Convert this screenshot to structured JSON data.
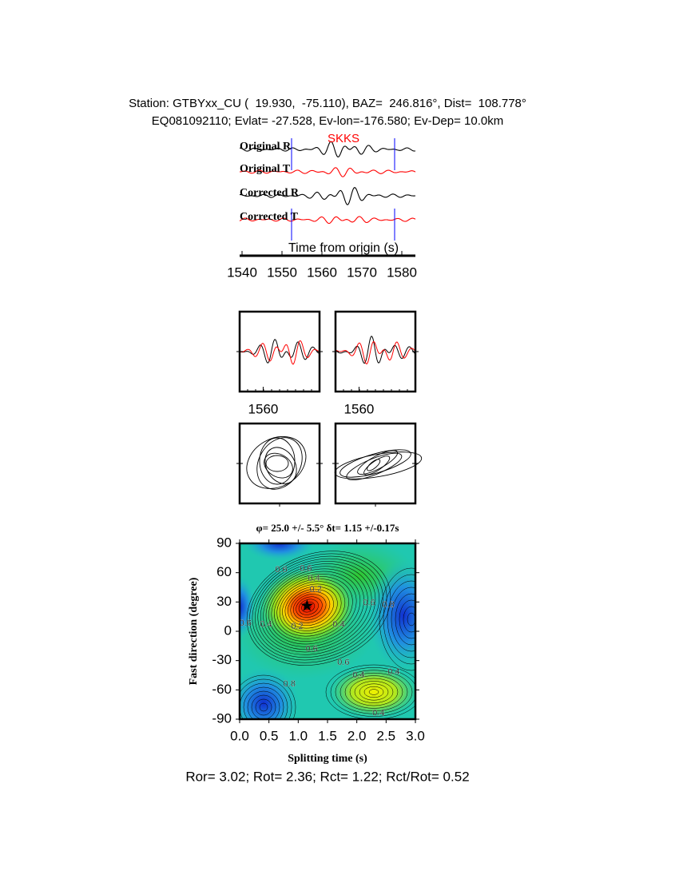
{
  "header": {
    "station": "Station: GTBYxx_CU (  19.930,  -75.110), BAZ=  246.816°, Dist=  108.778°",
    "event": "EQ081092110; Evlat= -27.528, Ev-lon=-176.580; Ev-Dep= 10.0km"
  },
  "chart_data": [
    {
      "type": "seismogram",
      "traces": [
        {
          "name": "Original R",
          "color": "#000000"
        },
        {
          "name": "Original T",
          "color": "#ff0000"
        },
        {
          "name": "Corrected R",
          "color": "#000000"
        },
        {
          "name": "Corrected T",
          "color": "#ff0000"
        }
      ],
      "phase": "SKKS",
      "phase_color": "#ff0000",
      "arrival": 1565.4,
      "window": [
        1552.4,
        1578.2
      ],
      "window_color": "#0000ff",
      "xlabel": "Time from origin (s)",
      "xlim": [
        1539.4,
        1583.4
      ],
      "xticks": [
        1540,
        1550,
        1560,
        1570,
        1580
      ]
    },
    {
      "type": "waveform_window",
      "xlim": [
        1552.4,
        1578.2
      ],
      "xticks": [
        1560
      ],
      "colors": [
        "#000000",
        "#ff0000"
      ]
    },
    {
      "type": "waveform_window",
      "xlim": [
        1552.4,
        1578.2
      ],
      "xticks": [
        1560
      ],
      "colors": [
        "#000000",
        "#ff0000"
      ]
    },
    {
      "type": "contour",
      "title": "φ= 25.0 +/- 5.5° δt= 1.15 +/-0.17s",
      "xlabel": "Splitting time (s)",
      "ylabel": "Fast direction (degree)",
      "xlim": [
        0,
        3
      ],
      "ylim": [
        -90,
        90
      ],
      "xticks": [
        {
          "value": 0,
          "label": "0.0"
        },
        0.5,
        {
          "value": 1,
          "label": "1.0"
        },
        1.5,
        {
          "value": 2,
          "label": "2.0"
        },
        2.5,
        {
          "value": 3,
          "label": "3.0"
        }
      ],
      "yticks": [
        90,
        60,
        30,
        0,
        -30,
        -60,
        -90
      ],
      "best": {
        "x": 1.15,
        "y": 25
      },
      "contour_labels": [
        {
          "value": 0.6,
          "x": 0.71,
          "y": 63
        },
        {
          "value": 0.6,
          "x": 1.13,
          "y": 64
        },
        {
          "value": 0.4,
          "x": 1.27,
          "y": 54
        },
        {
          "value": 0.2,
          "x": 1.3,
          "y": 43
        },
        {
          "value": 0.4,
          "x": 1.69,
          "y": 7
        },
        {
          "value": 0.2,
          "x": 0.98,
          "y": 5
        },
        {
          "value": 0.6,
          "x": 1.23,
          "y": -18
        },
        {
          "value": 0.6,
          "x": 1.77,
          "y": -32
        },
        {
          "value": 0.4,
          "x": 2.03,
          "y": -45
        },
        {
          "value": 0.4,
          "x": 2.63,
          "y": -42
        },
        {
          "value": 0.4,
          "x": 2.37,
          "y": -84
        },
        {
          "value": 0.6,
          "x": 2.21,
          "y": 29
        },
        {
          "value": 0.8,
          "x": 2.54,
          "y": 27
        },
        {
          "value": 0.8,
          "x": 0.85,
          "y": -54
        },
        {
          "value": 0.6,
          "x": 0.1,
          "y": 8
        },
        {
          "value": 0.4,
          "x": 0.45,
          "y": 7
        }
      ]
    }
  ],
  "footer": "Ror= 3.02; Rot= 2.36; Rct= 1.22; Rct/Rot= 0.52"
}
